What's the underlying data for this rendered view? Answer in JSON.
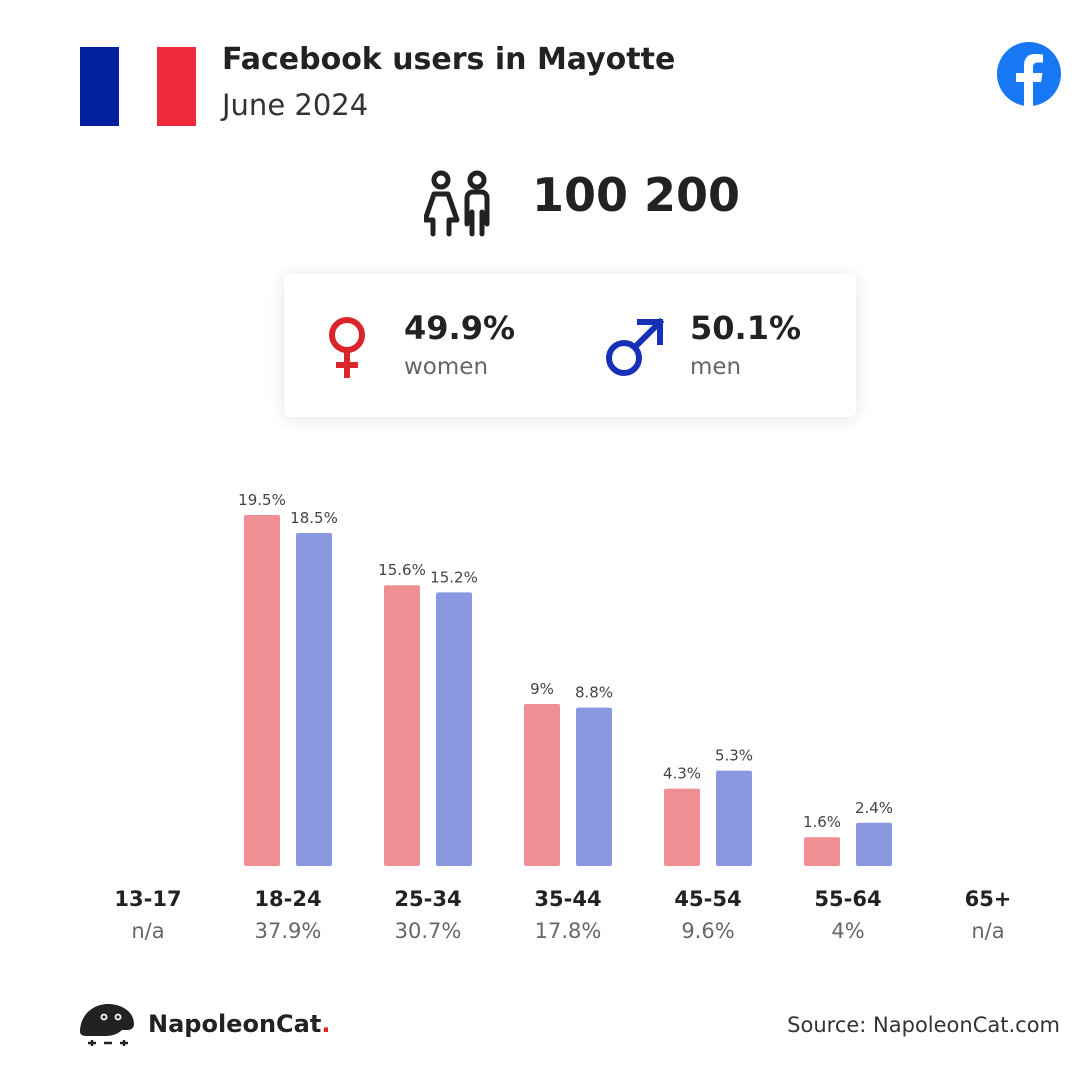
{
  "header": {
    "title": "Facebook users in Mayotte",
    "subtitle": "June 2024"
  },
  "flag_colors": [
    "#00209F",
    "#FFFFFF",
    "#EF2B3D"
  ],
  "icons": {
    "facebook": "facebook-logo-icon",
    "people": "people-icon",
    "female": "female-symbol-icon",
    "male": "male-symbol-icon",
    "brand": "napoleoncat-logo-icon"
  },
  "summary": {
    "total": "100 200",
    "women": {
      "value": "49.9%",
      "label": "women"
    },
    "men": {
      "value": "50.1%",
      "label": "men"
    }
  },
  "colors": {
    "women": "#EF8F94",
    "men": "#8A98E2",
    "female_symbol": "#D9262C",
    "male_symbol": "#1631B8",
    "facebook": "#1877F2"
  },
  "chart_data": {
    "type": "bar",
    "categories": [
      "13-17",
      "18-24",
      "25-34",
      "35-44",
      "45-54",
      "55-64",
      "65+"
    ],
    "category_totals": [
      "n/a",
      "37.9%",
      "30.7%",
      "17.8%",
      "9.6%",
      "4%",
      "n/a"
    ],
    "series": [
      {
        "name": "women",
        "values": [
          null,
          19.5,
          15.6,
          9,
          4.3,
          1.6,
          null
        ],
        "labels": [
          "",
          "19.5%",
          "15.6%",
          "9%",
          "4.3%",
          "1.6%",
          ""
        ]
      },
      {
        "name": "men",
        "values": [
          null,
          18.5,
          15.2,
          8.8,
          5.3,
          2.4,
          null
        ],
        "labels": [
          "",
          "18.5%",
          "15.2%",
          "8.8%",
          "5.3%",
          "2.4%",
          ""
        ]
      }
    ],
    "ylim": [
      0,
      19.5
    ],
    "grid": false
  },
  "footer": {
    "brand_name": "NapoleonCat",
    "brand_dot": ".",
    "source": "Source: NapoleonCat.com"
  }
}
